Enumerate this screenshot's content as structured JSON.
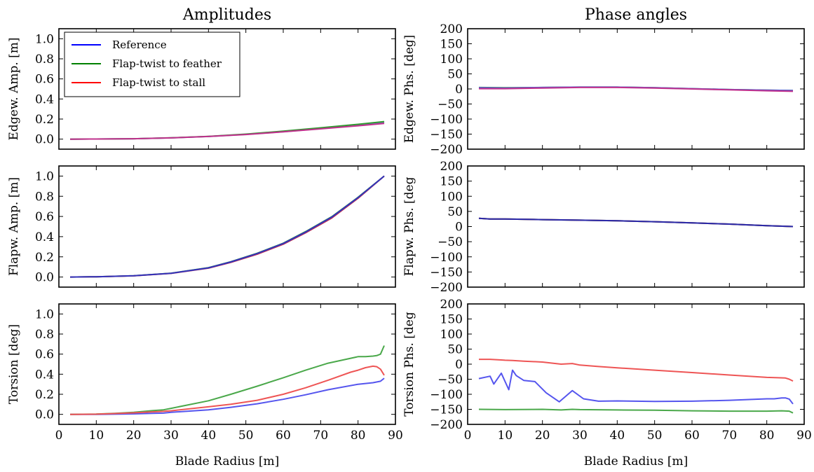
{
  "chart_data": [
    {
      "type": "line",
      "title": "Amplitudes",
      "xlabel": "",
      "ylabel": "Edgew. Amp. [m]",
      "xlim": [
        0,
        90
      ],
      "ylim": [
        -0.1,
        1.1
      ],
      "xticks": [
        0,
        10,
        20,
        30,
        40,
        50,
        60,
        70,
        80,
        90
      ],
      "yticks": [
        0.0,
        0.2,
        0.4,
        0.6,
        0.8,
        1.0
      ],
      "xtick_labels": [],
      "ytick_labels": [
        "0.0",
        "0.2",
        "0.4",
        "0.6",
        "0.8",
        "1.0"
      ],
      "legend": {
        "position": "upper-left",
        "entries": [
          {
            "label": "Reference",
            "color": "#0000ff"
          },
          {
            "label": "Flap-twist to feather",
            "color": "#008000"
          },
          {
            "label": "Flap-twist to stall",
            "color": "#ff0000"
          }
        ]
      },
      "series": [
        {
          "color": "#7d7de6",
          "x": [
            3,
            10,
            20,
            30,
            40,
            50,
            60,
            70,
            80,
            87
          ],
          "y": [
            0.0,
            0.001,
            0.004,
            0.012,
            0.026,
            0.047,
            0.074,
            0.105,
            0.138,
            0.163
          ]
        },
        {
          "color": "#2f9a2f",
          "x": [
            3,
            10,
            20,
            30,
            40,
            50,
            60,
            70,
            80,
            87
          ],
          "y": [
            0.0,
            0.001,
            0.004,
            0.013,
            0.028,
            0.05,
            0.079,
            0.113,
            0.148,
            0.175
          ]
        },
        {
          "color": "#c0308c",
          "x": [
            3,
            10,
            20,
            30,
            40,
            50,
            60,
            70,
            80,
            87
          ],
          "y": [
            0.0,
            0.001,
            0.004,
            0.012,
            0.026,
            0.046,
            0.072,
            0.102,
            0.133,
            0.157
          ]
        }
      ]
    },
    {
      "type": "line",
      "title": "Phase angles",
      "xlabel": "",
      "ylabel": "Edgew. Phs. [deg]",
      "xlim": [
        0,
        90
      ],
      "ylim": [
        -200,
        200
      ],
      "xticks": [
        0,
        10,
        20,
        30,
        40,
        50,
        60,
        70,
        80,
        90
      ],
      "yticks": [
        -200,
        -150,
        -100,
        -50,
        0,
        50,
        100,
        150,
        200
      ],
      "xtick_labels": [],
      "ytick_labels": [
        "−200",
        "−150",
        "−100",
        "−50",
        "0",
        "50",
        "100",
        "150",
        "200"
      ],
      "series": [
        {
          "color": "#2f9a2f",
          "x": [
            3,
            10,
            20,
            30,
            40,
            50,
            60,
            70,
            80,
            87
          ],
          "y": [
            5,
            4,
            5,
            6,
            6,
            4,
            1,
            -2,
            -4,
            -5
          ]
        },
        {
          "color": "#5d5dd8",
          "x": [
            3,
            10,
            20,
            30,
            40,
            50,
            60,
            70,
            80,
            87
          ],
          "y": [
            4,
            3,
            5,
            6,
            6,
            4,
            1,
            -2,
            -4,
            -5
          ]
        },
        {
          "color": "#c0308c",
          "x": [
            3,
            10,
            20,
            30,
            40,
            50,
            60,
            70,
            80,
            87
          ],
          "y": [
            1,
            1,
            3,
            5,
            5,
            3,
            0,
            -3,
            -6,
            -8
          ]
        }
      ]
    },
    {
      "type": "line",
      "xlabel": "",
      "ylabel": "Flapw. Amp. [m]",
      "xlim": [
        0,
        90
      ],
      "ylim": [
        -0.1,
        1.1
      ],
      "xticks": [
        0,
        10,
        20,
        30,
        40,
        50,
        60,
        70,
        80,
        90
      ],
      "yticks": [
        0.0,
        0.2,
        0.4,
        0.6,
        0.8,
        1.0
      ],
      "xtick_labels": [],
      "ytick_labels": [
        "0.0",
        "0.2",
        "0.4",
        "0.6",
        "0.8",
        "1.0"
      ],
      "series": [
        {
          "color": "#2f9a2f",
          "x": [
            3,
            10,
            20,
            30,
            40,
            46,
            53,
            60,
            66,
            73,
            80,
            87
          ],
          "y": [
            0.0,
            0.003,
            0.013,
            0.038,
            0.093,
            0.152,
            0.235,
            0.335,
            0.45,
            0.598,
            0.79,
            1.0
          ]
        },
        {
          "color": "#c03050",
          "x": [
            3,
            10,
            20,
            30,
            40,
            46,
            53,
            60,
            66,
            73,
            80,
            87
          ],
          "y": [
            0.0,
            0.003,
            0.012,
            0.036,
            0.088,
            0.145,
            0.225,
            0.325,
            0.438,
            0.585,
            0.78,
            1.0
          ]
        },
        {
          "color": "#3333bb",
          "x": [
            3,
            10,
            20,
            30,
            40,
            46,
            53,
            60,
            66,
            73,
            80,
            87
          ],
          "y": [
            0.0,
            0.003,
            0.013,
            0.037,
            0.091,
            0.15,
            0.232,
            0.332,
            0.446,
            0.594,
            0.787,
            1.0
          ]
        }
      ]
    },
    {
      "type": "line",
      "xlabel": "",
      "ylabel": "Flapw. Phs. [deg",
      "xlim": [
        0,
        90
      ],
      "ylim": [
        -200,
        200
      ],
      "xticks": [
        0,
        10,
        20,
        30,
        40,
        50,
        60,
        70,
        80,
        90
      ],
      "yticks": [
        -200,
        -150,
        -100,
        -50,
        0,
        50,
        100,
        150,
        200
      ],
      "xtick_labels": [],
      "ytick_labels": [
        "−200",
        "−150",
        "−100",
        "−50",
        "0",
        "50",
        "100",
        "150",
        "200"
      ],
      "series": [
        {
          "color": "#2f9a2f",
          "x": [
            3,
            6,
            10,
            20,
            30,
            40,
            50,
            60,
            70,
            80,
            87
          ],
          "y": [
            27,
            25,
            25,
            23,
            21,
            19,
            16,
            12,
            8,
            3,
            0
          ]
        },
        {
          "color": "#c03050",
          "x": [
            3,
            6,
            10,
            20,
            30,
            40,
            50,
            60,
            70,
            80,
            87
          ],
          "y": [
            27,
            25,
            25,
            23,
            21,
            19,
            16,
            12,
            8,
            3,
            0
          ]
        },
        {
          "color": "#2a2aaa",
          "x": [
            3,
            6,
            10,
            20,
            30,
            40,
            50,
            60,
            70,
            80,
            87
          ],
          "y": [
            27,
            25,
            25,
            23,
            21,
            19,
            16,
            12,
            8,
            3,
            0
          ]
        }
      ]
    },
    {
      "type": "line",
      "xlabel": "Blade Radius [m]",
      "ylabel": "Torsion [deg]",
      "xlim": [
        0,
        90
      ],
      "ylim": [
        -0.1,
        1.1
      ],
      "xticks": [
        0,
        10,
        20,
        30,
        40,
        50,
        60,
        70,
        80,
        90
      ],
      "yticks": [
        0.0,
        0.2,
        0.4,
        0.6,
        0.8,
        1.0
      ],
      "xtick_labels": [
        "0",
        "10",
        "20",
        "30",
        "40",
        "50",
        "60",
        "70",
        "80",
        "90"
      ],
      "ytick_labels": [
        "0.0",
        "0.2",
        "0.4",
        "0.6",
        "0.8",
        "1.0"
      ],
      "series": [
        {
          "color": "#5555ee",
          "x": [
            3,
            10,
            15,
            20,
            25,
            28,
            30,
            40,
            46,
            53,
            60,
            66,
            72,
            80,
            84,
            86,
            87
          ],
          "y": [
            0.0,
            0.0,
            0.002,
            0.005,
            0.01,
            0.012,
            0.02,
            0.045,
            0.07,
            0.105,
            0.15,
            0.195,
            0.245,
            0.3,
            0.315,
            0.33,
            0.36
          ]
        },
        {
          "color": "#4aa84a",
          "x": [
            3,
            10,
            15,
            20,
            25,
            28,
            30,
            40,
            46,
            53,
            60,
            66,
            72,
            80,
            82,
            84,
            85,
            86,
            87
          ],
          "y": [
            0.0,
            0.003,
            0.01,
            0.02,
            0.037,
            0.045,
            0.06,
            0.135,
            0.2,
            0.28,
            0.365,
            0.44,
            0.51,
            0.575,
            0.575,
            0.58,
            0.585,
            0.6,
            0.685
          ]
        },
        {
          "color": "#ee5555",
          "x": [
            3,
            10,
            15,
            20,
            25,
            28,
            30,
            40,
            46,
            53,
            60,
            66,
            72,
            78,
            80,
            82,
            84,
            85,
            86,
            87
          ],
          "y": [
            0.0,
            0.002,
            0.008,
            0.015,
            0.025,
            0.03,
            0.035,
            0.075,
            0.1,
            0.14,
            0.2,
            0.265,
            0.34,
            0.42,
            0.44,
            0.465,
            0.48,
            0.475,
            0.45,
            0.39
          ]
        }
      ]
    },
    {
      "type": "line",
      "xlabel": "Blade Radius [m]",
      "ylabel": "Torsion Phs. [deg",
      "xlim": [
        0,
        90
      ],
      "ylim": [
        -200,
        200
      ],
      "xticks": [
        0,
        10,
        20,
        30,
        40,
        50,
        60,
        70,
        80,
        90
      ],
      "yticks": [
        -200,
        -150,
        -100,
        -50,
        0,
        50,
        100,
        150,
        200
      ],
      "xtick_labels": [
        "0",
        "10",
        "20",
        "30",
        "40",
        "50",
        "60",
        "70",
        "80",
        "90"
      ],
      "ytick_labels": [
        "−200",
        "−150",
        "−100",
        "−50",
        "0",
        "50",
        "100",
        "150",
        "200"
      ],
      "series": [
        {
          "color": "#ee5555",
          "x": [
            3,
            6,
            9,
            10,
            12,
            15,
            20,
            25,
            28,
            30,
            35,
            40,
            50,
            60,
            70,
            80,
            83,
            85,
            86,
            87
          ],
          "y": [
            16,
            16,
            14,
            13,
            12,
            10,
            7,
            0,
            2,
            -3,
            -8,
            -12,
            -20,
            -28,
            -36,
            -44,
            -45,
            -46,
            -50,
            -56
          ]
        },
        {
          "color": "#5555ee",
          "x": [
            3,
            6,
            7,
            9,
            11,
            12,
            13,
            15,
            18,
            21,
            24.5,
            28,
            31,
            35,
            40,
            50,
            60,
            70,
            80,
            82,
            84,
            85,
            86,
            87
          ],
          "y": [
            -48,
            -40,
            -66,
            -30,
            -85,
            -20,
            -38,
            -54,
            -58,
            -95,
            -125,
            -88,
            -115,
            -123,
            -122,
            -124,
            -123,
            -120,
            -115,
            -115,
            -112,
            -112,
            -116,
            -132
          ]
        },
        {
          "color": "#4aa84a",
          "x": [
            3,
            10,
            20,
            25,
            28,
            30,
            40,
            50,
            60,
            70,
            80,
            84,
            86,
            87
          ],
          "y": [
            -150,
            -151,
            -150,
            -152,
            -150,
            -151,
            -152,
            -153,
            -155,
            -156,
            -156,
            -155,
            -156,
            -162
          ]
        }
      ]
    }
  ]
}
